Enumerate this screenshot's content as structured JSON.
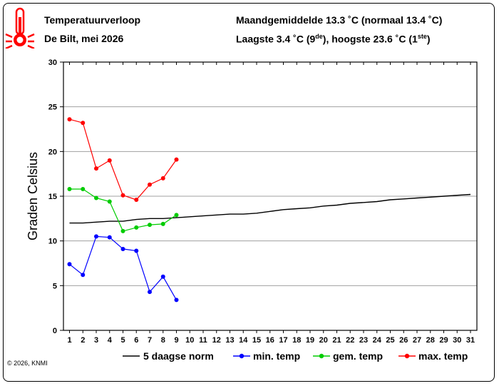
{
  "header": {
    "title": "Temperatuurverloop",
    "subtitle": "De Bilt, mei 2026",
    "avg_line": "Maandgemiddelde 13.3 ˚C (normaal 13.4 ˚C)",
    "extremes_prefix": "Laagste 3.4 ˚C (9",
    "extremes_sup1": "de",
    "extremes_mid": "), hoogste 23.6 ˚C (1",
    "extremes_sup2": "ste",
    "extremes_suffix": ")"
  },
  "copyright": "© 2026, KNMI",
  "colors": {
    "norm": "#000000",
    "min": "#0000ff",
    "avg": "#00cc00",
    "max": "#ff0000",
    "grid": "#a0a0a0",
    "thermometer": "#ff0000"
  },
  "icons": {
    "logo": "thermometer-icon"
  },
  "chart_data": {
    "type": "line",
    "ylabel": "Graden Celsius",
    "xlabel": "",
    "xlim": [
      1,
      31
    ],
    "ylim": [
      0,
      30
    ],
    "yticks": [
      0,
      5,
      10,
      15,
      20,
      25,
      30
    ],
    "xticks": [
      1,
      2,
      3,
      4,
      5,
      6,
      7,
      8,
      9,
      10,
      11,
      12,
      13,
      14,
      15,
      16,
      17,
      18,
      19,
      20,
      21,
      22,
      23,
      24,
      25,
      26,
      27,
      28,
      29,
      30,
      31
    ],
    "grid": true,
    "legend": "bottom",
    "series": [
      {
        "name": "5 daagse norm",
        "color": "#000000",
        "markers": false,
        "x": [
          1,
          2,
          3,
          4,
          5,
          6,
          7,
          8,
          9,
          10,
          11,
          12,
          13,
          14,
          15,
          16,
          17,
          18,
          19,
          20,
          21,
          22,
          23,
          24,
          25,
          26,
          27,
          28,
          29,
          30,
          31
        ],
        "values": [
          12.0,
          12.0,
          12.1,
          12.2,
          12.2,
          12.4,
          12.5,
          12.5,
          12.6,
          12.7,
          12.8,
          12.9,
          13.0,
          13.0,
          13.1,
          13.3,
          13.5,
          13.6,
          13.7,
          13.9,
          14.0,
          14.2,
          14.3,
          14.4,
          14.6,
          14.7,
          14.8,
          14.9,
          15.0,
          15.1,
          15.2
        ]
      },
      {
        "name": "min. temp",
        "color": "#0000ff",
        "markers": true,
        "x": [
          1,
          2,
          3,
          4,
          5,
          6,
          7,
          8,
          9
        ],
        "values": [
          7.4,
          6.2,
          10.5,
          10.4,
          9.1,
          8.9,
          4.3,
          6.0,
          3.4
        ]
      },
      {
        "name": "gem. temp",
        "color": "#00cc00",
        "markers": true,
        "x": [
          1,
          2,
          3,
          4,
          5,
          6,
          7,
          8,
          9
        ],
        "values": [
          15.8,
          15.8,
          14.8,
          14.4,
          11.1,
          11.5,
          11.8,
          11.9,
          12.9
        ]
      },
      {
        "name": "max. temp",
        "color": "#ff0000",
        "markers": true,
        "x": [
          1,
          2,
          3,
          4,
          5,
          6,
          7,
          8,
          9
        ],
        "values": [
          23.6,
          23.2,
          18.1,
          19.0,
          15.1,
          14.6,
          16.3,
          17.0,
          19.1
        ]
      }
    ]
  }
}
